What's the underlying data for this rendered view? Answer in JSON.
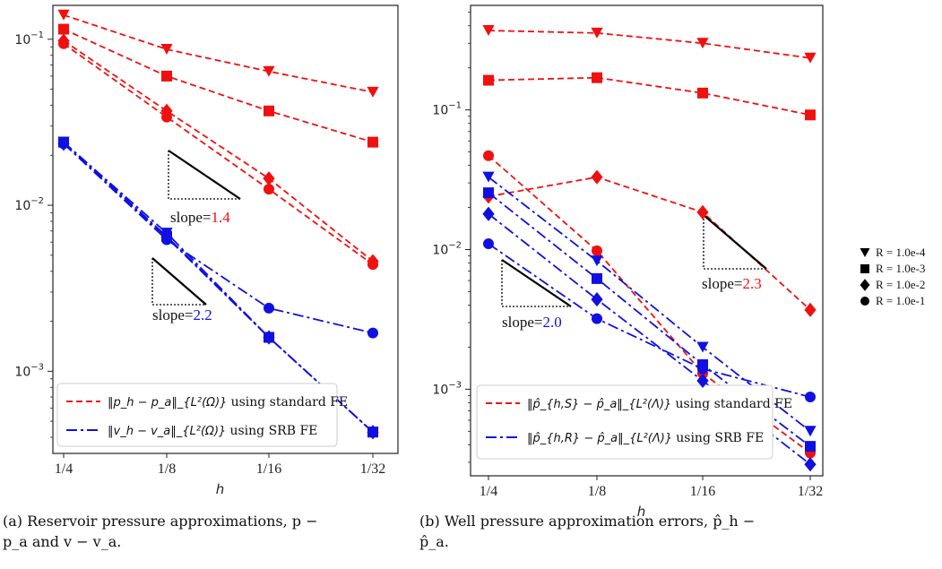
{
  "captions": {
    "a": "(a) Reservoir pressure approximations, p − p_a and v − v_a.",
    "a_line1": "(a) Reservoir pressure approximations, p −",
    "a_line2": "p_a and v − v_a.",
    "b_line1": "(b) Well pressure approximation errors, p̂_h −",
    "b_line2": "p̂_a."
  },
  "marker_legend": [
    {
      "marker": "triangle-down",
      "label": "R = 1.0e-4"
    },
    {
      "marker": "square",
      "label": "R = 1.0e-3"
    },
    {
      "marker": "diamond",
      "label": "R = 1.0e-2"
    },
    {
      "marker": "circle",
      "label": "R = 1.0e-1"
    }
  ],
  "colors": {
    "standard": "#f01010",
    "srb": "#1010e0",
    "slope_a_top": "#f01010",
    "slope_a_bot": "#1010e0",
    "slope_b_top": "#f01010",
    "slope_b_bot": "#1010e0"
  },
  "chart_data": [
    {
      "type": "line",
      "panel": "a",
      "xlabel": "h",
      "ylabel": "",
      "log_y": true,
      "ylim": [
        0.00032,
        0.16
      ],
      "categories": [
        "1/4",
        "1/8",
        "1/16",
        "1/32"
      ],
      "y_ticks": [
        {
          "value": 0.1,
          "base": "10",
          "exp": "−1"
        },
        {
          "value": 0.01,
          "base": "10",
          "exp": "−2"
        },
        {
          "value": 0.001,
          "base": "10",
          "exp": "−3"
        }
      ],
      "legend": [
        {
          "style": "dashed",
          "color": "#f01010",
          "math": "‖p_h − p_a‖_{L²(Ω)}",
          "text": "using standard FE"
        },
        {
          "style": "dashdot",
          "color": "#1010e0",
          "math": "‖v_h − v_a‖_{L²(Ω)}",
          "text": "using SRB FE"
        }
      ],
      "series": [
        {
          "group": "standard",
          "marker": "triangle-down",
          "values": [
            0.14,
            0.087,
            0.064,
            0.048
          ]
        },
        {
          "group": "standard",
          "marker": "square",
          "values": [
            0.115,
            0.06,
            0.037,
            0.024
          ]
        },
        {
          "group": "standard",
          "marker": "diamond",
          "values": [
            0.098,
            0.037,
            0.0145,
            0.0046
          ]
        },
        {
          "group": "standard",
          "marker": "circle",
          "values": [
            0.094,
            0.034,
            0.0125,
            0.0044
          ]
        },
        {
          "group": "srb",
          "marker": "triangle-down",
          "values": [
            0.024,
            0.0068,
            0.0016,
            0.00043
          ]
        },
        {
          "group": "srb",
          "marker": "square",
          "values": [
            0.024,
            0.0065,
            0.0016,
            0.00043
          ]
        },
        {
          "group": "srb",
          "marker": "diamond",
          "values": [
            0.0235,
            0.0064,
            0.0016,
            0.00043
          ]
        },
        {
          "group": "srb",
          "marker": "circle",
          "values": [
            0.0235,
            0.0062,
            0.0024,
            0.0017
          ]
        }
      ],
      "annotations": [
        {
          "label": "slope=",
          "value": "1.4",
          "color": "#f01010"
        },
        {
          "label": "slope=",
          "value": "2.2",
          "color": "#1010e0"
        }
      ]
    },
    {
      "type": "line",
      "panel": "b",
      "xlabel": "h",
      "ylabel": "",
      "log_y": true,
      "ylim": [
        0.00024,
        0.56
      ],
      "categories": [
        "1/4",
        "1/8",
        "1/16",
        "1/32"
      ],
      "y_ticks": [
        {
          "value": 0.1,
          "base": "10",
          "exp": "−1"
        },
        {
          "value": 0.01,
          "base": "10",
          "exp": "−2"
        },
        {
          "value": 0.001,
          "base": "10",
          "exp": "−3"
        }
      ],
      "legend": [
        {
          "style": "dashed",
          "color": "#f01010",
          "math": "‖p̂_{h,S} − p̂_a‖_{L²(Λ)}",
          "text": "using standard FE"
        },
        {
          "style": "dashdot",
          "color": "#1010e0",
          "math": "‖p̂_{h,R} − p̂_a‖_{L²(Λ)}",
          "text": "using SRB FE"
        }
      ],
      "series": [
        {
          "group": "standard",
          "marker": "triangle-down",
          "values": [
            0.37,
            0.355,
            0.3,
            0.235
          ]
        },
        {
          "group": "standard",
          "marker": "square",
          "values": [
            0.163,
            0.17,
            0.132,
            0.092
          ]
        },
        {
          "group": "standard",
          "marker": "diamond",
          "values": [
            0.024,
            0.033,
            0.0185,
            0.0037
          ]
        },
        {
          "group": "standard",
          "marker": "circle",
          "values": [
            0.047,
            0.0098,
            0.0013,
            0.00035
          ]
        },
        {
          "group": "srb",
          "marker": "triangle-down",
          "values": [
            0.033,
            0.0083,
            0.002,
            0.0005
          ]
        },
        {
          "group": "srb",
          "marker": "square",
          "values": [
            0.0255,
            0.0062,
            0.0015,
            0.00039
          ]
        },
        {
          "group": "srb",
          "marker": "diamond",
          "values": [
            0.018,
            0.0044,
            0.00115,
            0.00029
          ]
        },
        {
          "group": "srb",
          "marker": "circle",
          "values": [
            0.011,
            0.0032,
            0.0014,
            0.00088
          ]
        }
      ],
      "annotations": [
        {
          "label": "slope=",
          "value": "2.3",
          "color": "#f01010"
        },
        {
          "label": "slope=",
          "value": "2.0",
          "color": "#1010e0"
        }
      ]
    }
  ]
}
